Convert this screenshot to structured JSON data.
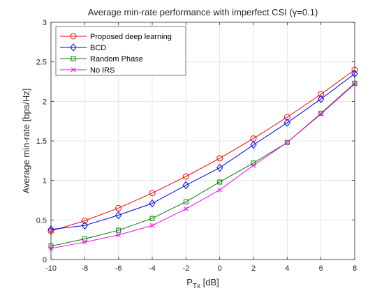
{
  "chart_data": {
    "type": "line",
    "title": "Average min-rate performance with imperfect CSI (γ=0.1)",
    "xlabel": "P",
    "xlabel_sub": "Tx",
    "xlabel_unit": " [dB]",
    "ylabel": "Average min-rate [bps/Hz]",
    "xlim": [
      -10,
      8
    ],
    "ylim": [
      0,
      3
    ],
    "xticks": [
      -10,
      -8,
      -6,
      -4,
      -2,
      0,
      2,
      4,
      6,
      8
    ],
    "yticks": [
      0,
      0.5,
      1,
      1.5,
      2,
      2.5,
      3
    ],
    "xtick_labels": [
      "-10",
      "-8",
      "-6",
      "-4",
      "-2",
      "0",
      "2",
      "4",
      "6",
      "8"
    ],
    "ytick_labels": [
      "0",
      "0.5",
      "1",
      "1.5",
      "2",
      "2.5",
      "3"
    ],
    "grid": true,
    "legend_position": "top-left",
    "x": [
      -10,
      -8,
      -6,
      -4,
      -2,
      0,
      2,
      4,
      6,
      8
    ],
    "series": [
      {
        "name": "Proposed deep learning",
        "color": "#ff0000",
        "marker": "circle",
        "values": [
          0.36,
          0.49,
          0.65,
          0.84,
          1.05,
          1.28,
          1.53,
          1.8,
          2.09,
          2.4
        ]
      },
      {
        "name": "BCD",
        "color": "#0000ff",
        "marker": "diamond",
        "values": [
          0.38,
          0.43,
          0.56,
          0.71,
          0.94,
          1.16,
          1.45,
          1.73,
          2.03,
          2.35
        ]
      },
      {
        "name": "Random Phase",
        "color": "#008000",
        "marker": "square",
        "values": [
          0.17,
          0.26,
          0.37,
          0.52,
          0.73,
          0.98,
          1.22,
          1.48,
          1.85,
          2.23
        ]
      },
      {
        "name": "No IRS",
        "color": "#ff00ff",
        "marker": "x",
        "values": [
          0.14,
          0.22,
          0.31,
          0.43,
          0.64,
          0.88,
          1.19,
          1.48,
          1.84,
          2.22
        ]
      }
    ]
  }
}
